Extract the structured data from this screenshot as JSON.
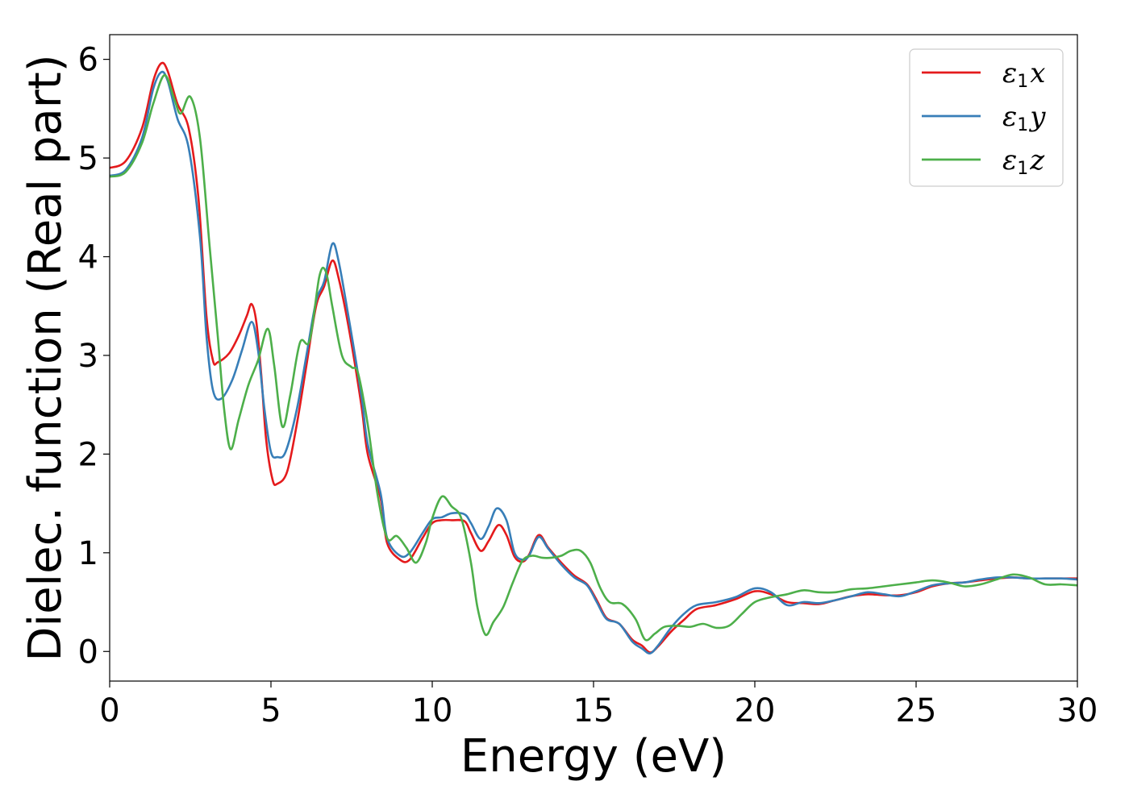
{
  "chart_data": {
    "type": "line",
    "xlabel": "Energy (eV)",
    "ylabel": "Dielec. function (Real part)",
    "xlim": [
      0,
      30
    ],
    "ylim": [
      -0.3,
      6.25
    ],
    "xticks": [
      0,
      5,
      10,
      15,
      20,
      25,
      30
    ],
    "yticks": [
      0,
      1,
      2,
      3,
      4,
      5,
      6
    ],
    "grid": false,
    "legend_position": "top-right",
    "series": [
      {
        "name": "ε1x",
        "label_base": "ε",
        "label_sub": "1",
        "label_suffix": "x",
        "color": "#e41a1c",
        "points": [
          [
            0,
            4.9
          ],
          [
            0.5,
            4.97
          ],
          [
            1.0,
            5.3
          ],
          [
            1.35,
            5.78
          ],
          [
            1.6,
            5.96
          ],
          [
            1.8,
            5.88
          ],
          [
            2.1,
            5.55
          ],
          [
            2.45,
            5.3
          ],
          [
            2.75,
            4.6
          ],
          [
            3.0,
            3.4
          ],
          [
            3.2,
            2.95
          ],
          [
            3.35,
            2.93
          ],
          [
            3.7,
            3.02
          ],
          [
            4.0,
            3.2
          ],
          [
            4.25,
            3.4
          ],
          [
            4.4,
            3.52
          ],
          [
            4.55,
            3.33
          ],
          [
            4.7,
            2.8
          ],
          [
            4.85,
            2.15
          ],
          [
            5.05,
            1.74
          ],
          [
            5.2,
            1.7
          ],
          [
            5.5,
            1.82
          ],
          [
            5.8,
            2.3
          ],
          [
            6.1,
            2.9
          ],
          [
            6.4,
            3.5
          ],
          [
            6.65,
            3.7
          ],
          [
            6.9,
            3.96
          ],
          [
            7.1,
            3.78
          ],
          [
            7.4,
            3.3
          ],
          [
            7.8,
            2.5
          ],
          [
            8.0,
            2.0
          ],
          [
            8.4,
            1.55
          ],
          [
            8.6,
            1.1
          ],
          [
            9.0,
            0.93
          ],
          [
            9.3,
            0.93
          ],
          [
            9.7,
            1.15
          ],
          [
            10.0,
            1.3
          ],
          [
            10.3,
            1.33
          ],
          [
            10.6,
            1.33
          ],
          [
            11.0,
            1.32
          ],
          [
            11.2,
            1.2
          ],
          [
            11.5,
            1.02
          ],
          [
            11.75,
            1.12
          ],
          [
            12.05,
            1.28
          ],
          [
            12.3,
            1.18
          ],
          [
            12.55,
            0.96
          ],
          [
            12.8,
            0.91
          ],
          [
            13.0,
            0.98
          ],
          [
            13.3,
            1.18
          ],
          [
            13.6,
            1.05
          ],
          [
            14.0,
            0.9
          ],
          [
            14.4,
            0.77
          ],
          [
            14.8,
            0.68
          ],
          [
            15.1,
            0.52
          ],
          [
            15.4,
            0.34
          ],
          [
            15.8,
            0.28
          ],
          [
            16.2,
            0.12
          ],
          [
            16.5,
            0.06
          ],
          [
            16.75,
            -0.01
          ],
          [
            17.0,
            0.05
          ],
          [
            17.4,
            0.2
          ],
          [
            17.8,
            0.32
          ],
          [
            18.2,
            0.43
          ],
          [
            18.8,
            0.47
          ],
          [
            19.4,
            0.53
          ],
          [
            20.0,
            0.61
          ],
          [
            20.5,
            0.58
          ],
          [
            21.0,
            0.5
          ],
          [
            21.5,
            0.49
          ],
          [
            22.0,
            0.48
          ],
          [
            22.5,
            0.52
          ],
          [
            23.0,
            0.56
          ],
          [
            23.5,
            0.58
          ],
          [
            24.0,
            0.57
          ],
          [
            24.5,
            0.57
          ],
          [
            25.0,
            0.6
          ],
          [
            25.5,
            0.66
          ],
          [
            26.0,
            0.69
          ],
          [
            26.5,
            0.7
          ],
          [
            27.0,
            0.72
          ],
          [
            27.5,
            0.74
          ],
          [
            28.0,
            0.75
          ],
          [
            28.5,
            0.74
          ],
          [
            29.0,
            0.74
          ],
          [
            29.5,
            0.74
          ],
          [
            30.0,
            0.74
          ]
        ]
      },
      {
        "name": "ε1y",
        "label_base": "ε",
        "label_sub": "1",
        "label_suffix": "y",
        "color": "#377eb8",
        "points": [
          [
            0,
            4.82
          ],
          [
            0.5,
            4.88
          ],
          [
            1.0,
            5.2
          ],
          [
            1.35,
            5.7
          ],
          [
            1.6,
            5.87
          ],
          [
            1.8,
            5.78
          ],
          [
            2.1,
            5.4
          ],
          [
            2.45,
            5.1
          ],
          [
            2.8,
            4.2
          ],
          [
            3.0,
            3.2
          ],
          [
            3.2,
            2.65
          ],
          [
            3.45,
            2.56
          ],
          [
            3.8,
            2.75
          ],
          [
            4.1,
            3.05
          ],
          [
            4.4,
            3.34
          ],
          [
            4.6,
            3.05
          ],
          [
            4.8,
            2.45
          ],
          [
            5.0,
            2.02
          ],
          [
            5.2,
            1.97
          ],
          [
            5.45,
            2.02
          ],
          [
            5.8,
            2.45
          ],
          [
            6.1,
            3.0
          ],
          [
            6.4,
            3.55
          ],
          [
            6.65,
            3.75
          ],
          [
            6.9,
            4.13
          ],
          [
            7.1,
            3.95
          ],
          [
            7.4,
            3.4
          ],
          [
            7.8,
            2.6
          ],
          [
            8.0,
            2.1
          ],
          [
            8.4,
            1.6
          ],
          [
            8.6,
            1.15
          ],
          [
            9.0,
            0.97
          ],
          [
            9.3,
            1.0
          ],
          [
            9.7,
            1.2
          ],
          [
            10.0,
            1.34
          ],
          [
            10.3,
            1.36
          ],
          [
            10.6,
            1.4
          ],
          [
            11.0,
            1.39
          ],
          [
            11.2,
            1.3
          ],
          [
            11.5,
            1.14
          ],
          [
            11.75,
            1.27
          ],
          [
            12.0,
            1.45
          ],
          [
            12.3,
            1.33
          ],
          [
            12.55,
            1.0
          ],
          [
            12.8,
            0.93
          ],
          [
            13.0,
            0.97
          ],
          [
            13.3,
            1.16
          ],
          [
            13.6,
            1.04
          ],
          [
            14.0,
            0.88
          ],
          [
            14.4,
            0.75
          ],
          [
            14.8,
            0.67
          ],
          [
            15.1,
            0.5
          ],
          [
            15.4,
            0.33
          ],
          [
            15.8,
            0.28
          ],
          [
            16.2,
            0.1
          ],
          [
            16.5,
            0.03
          ],
          [
            16.75,
            -0.02
          ],
          [
            17.0,
            0.06
          ],
          [
            17.4,
            0.24
          ],
          [
            17.8,
            0.38
          ],
          [
            18.2,
            0.47
          ],
          [
            18.8,
            0.5
          ],
          [
            19.4,
            0.55
          ],
          [
            20.0,
            0.64
          ],
          [
            20.5,
            0.6
          ],
          [
            21.0,
            0.47
          ],
          [
            21.5,
            0.5
          ],
          [
            22.0,
            0.49
          ],
          [
            22.5,
            0.52
          ],
          [
            23.0,
            0.56
          ],
          [
            23.5,
            0.6
          ],
          [
            24.0,
            0.58
          ],
          [
            24.5,
            0.56
          ],
          [
            25.0,
            0.61
          ],
          [
            25.5,
            0.67
          ],
          [
            26.0,
            0.69
          ],
          [
            26.5,
            0.7
          ],
          [
            27.0,
            0.73
          ],
          [
            27.5,
            0.75
          ],
          [
            28.0,
            0.75
          ],
          [
            28.5,
            0.74
          ],
          [
            29.0,
            0.74
          ],
          [
            29.5,
            0.74
          ],
          [
            30.0,
            0.73
          ]
        ]
      },
      {
        "name": "ε1z",
        "label_base": "ε",
        "label_sub": "1",
        "label_suffix": "z",
        "color": "#4daf4a",
        "points": [
          [
            0,
            4.81
          ],
          [
            0.5,
            4.86
          ],
          [
            1.0,
            5.15
          ],
          [
            1.35,
            5.55
          ],
          [
            1.7,
            5.84
          ],
          [
            2.0,
            5.6
          ],
          [
            2.2,
            5.45
          ],
          [
            2.5,
            5.62
          ],
          [
            2.8,
            5.2
          ],
          [
            3.1,
            4.1
          ],
          [
            3.35,
            3.2
          ],
          [
            3.55,
            2.45
          ],
          [
            3.75,
            2.05
          ],
          [
            4.0,
            2.35
          ],
          [
            4.3,
            2.7
          ],
          [
            4.6,
            2.95
          ],
          [
            4.9,
            3.27
          ],
          [
            5.1,
            2.9
          ],
          [
            5.35,
            2.28
          ],
          [
            5.6,
            2.6
          ],
          [
            5.9,
            3.13
          ],
          [
            6.2,
            3.15
          ],
          [
            6.5,
            3.8
          ],
          [
            6.7,
            3.85
          ],
          [
            6.9,
            3.5
          ],
          [
            7.2,
            3.0
          ],
          [
            7.5,
            2.88
          ],
          [
            7.7,
            2.82
          ],
          [
            8.0,
            2.3
          ],
          [
            8.3,
            1.6
          ],
          [
            8.6,
            1.15
          ],
          [
            8.9,
            1.17
          ],
          [
            9.2,
            1.05
          ],
          [
            9.5,
            0.9
          ],
          [
            9.8,
            1.1
          ],
          [
            10.0,
            1.35
          ],
          [
            10.3,
            1.57
          ],
          [
            10.6,
            1.47
          ],
          [
            10.9,
            1.35
          ],
          [
            11.2,
            0.9
          ],
          [
            11.4,
            0.45
          ],
          [
            11.65,
            0.17
          ],
          [
            11.9,
            0.3
          ],
          [
            12.2,
            0.45
          ],
          [
            12.5,
            0.7
          ],
          [
            12.8,
            0.92
          ],
          [
            13.1,
            0.97
          ],
          [
            13.4,
            0.95
          ],
          [
            13.7,
            0.95
          ],
          [
            14.0,
            0.97
          ],
          [
            14.3,
            1.02
          ],
          [
            14.6,
            1.02
          ],
          [
            14.9,
            0.9
          ],
          [
            15.2,
            0.65
          ],
          [
            15.5,
            0.5
          ],
          [
            15.9,
            0.48
          ],
          [
            16.3,
            0.33
          ],
          [
            16.6,
            0.12
          ],
          [
            16.9,
            0.18
          ],
          [
            17.2,
            0.25
          ],
          [
            17.6,
            0.26
          ],
          [
            18.0,
            0.25
          ],
          [
            18.4,
            0.28
          ],
          [
            18.8,
            0.24
          ],
          [
            19.2,
            0.26
          ],
          [
            19.6,
            0.38
          ],
          [
            20.0,
            0.5
          ],
          [
            20.5,
            0.55
          ],
          [
            21.0,
            0.58
          ],
          [
            21.5,
            0.62
          ],
          [
            22.0,
            0.6
          ],
          [
            22.5,
            0.6
          ],
          [
            23.0,
            0.63
          ],
          [
            23.5,
            0.64
          ],
          [
            24.0,
            0.66
          ],
          [
            24.5,
            0.68
          ],
          [
            25.0,
            0.7
          ],
          [
            25.5,
            0.72
          ],
          [
            26.0,
            0.7
          ],
          [
            26.5,
            0.66
          ],
          [
            27.0,
            0.68
          ],
          [
            27.5,
            0.73
          ],
          [
            28.0,
            0.78
          ],
          [
            28.5,
            0.75
          ],
          [
            29.0,
            0.68
          ],
          [
            29.5,
            0.68
          ],
          [
            30.0,
            0.67
          ]
        ]
      }
    ]
  }
}
